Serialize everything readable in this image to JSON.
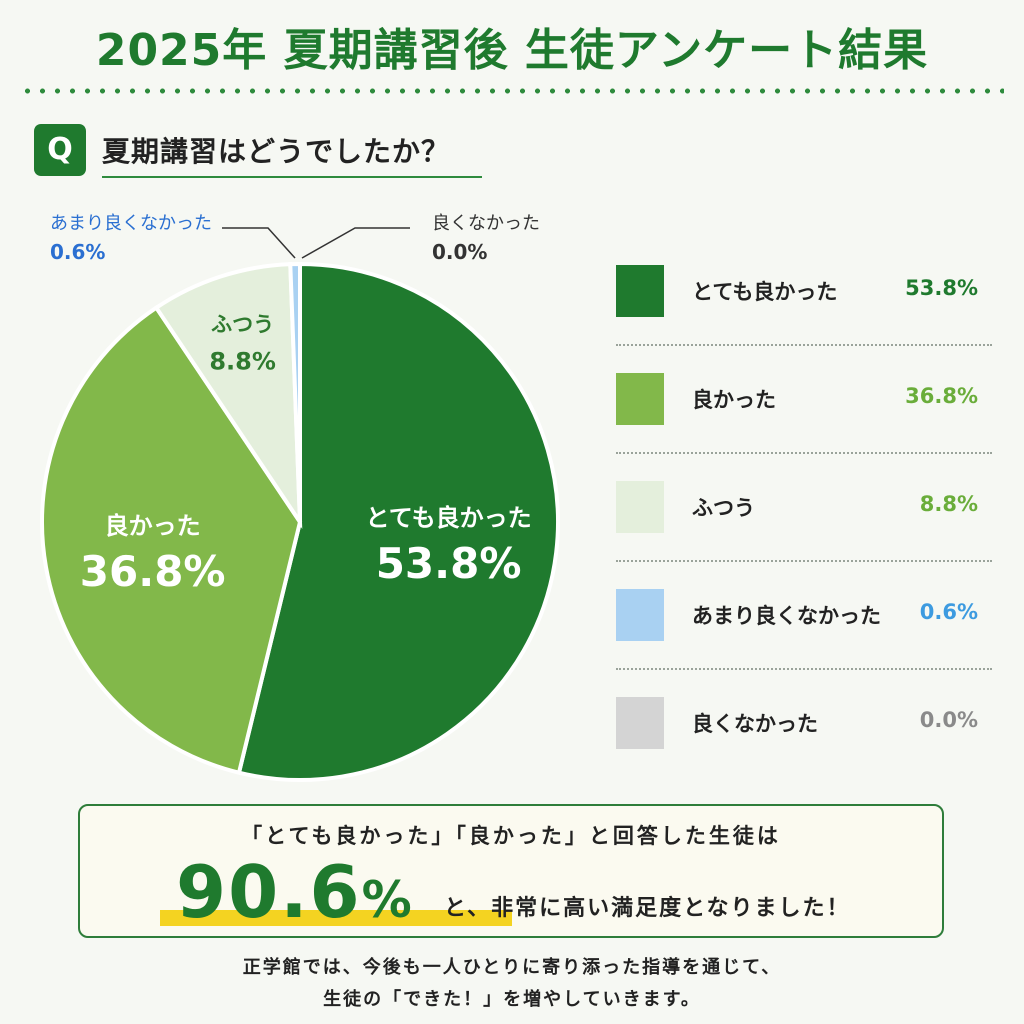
{
  "header": {
    "title": "2025年 夏期講習後 生徒アンケート結果",
    "q_badge": "Q",
    "question": "夏期講習はどうでしたか？"
  },
  "colors": {
    "dark_green": "#1f7a2e",
    "green": "#82b84a",
    "light_green": "#e4efdc",
    "light_blue": "#a9d1f2",
    "gray": "#d4d4d4",
    "highlight_yellow": "#f4d321"
  },
  "chart_data": {
    "type": "pie",
    "title": "夏期講習はどうでしたか？",
    "unit": "%",
    "slices": [
      {
        "label": "とても良かった",
        "value": 53.8,
        "value_text": "53.8%",
        "color": "#1f7a2e",
        "value_color": "#1f7a2e"
      },
      {
        "label": "良かった",
        "value": 36.8,
        "value_text": "36.8%",
        "color": "#82b84a",
        "value_color": "#6aad3a"
      },
      {
        "label": "ふつう",
        "value": 8.8,
        "value_text": "8.8%",
        "color": "#e4efdc",
        "value_color": "#6aad3a"
      },
      {
        "label": "あまり良くなかった",
        "value": 0.6,
        "value_text": "0.6%",
        "color": "#a9d1f2",
        "value_color": "#3d9be0"
      },
      {
        "label": "良くなかった",
        "value": 0.0,
        "value_text": "0.0%",
        "color": "#d4d4d4",
        "value_color": "#8a8a8a"
      }
    ],
    "legend_position": "right"
  },
  "summary": {
    "line1": "「とても良かった」「良かった」と回答した生徒は",
    "big_value": "90.6",
    "big_unit": "%",
    "line2": "と、非常に高い満足度となりました！"
  },
  "footer": {
    "line1": "正学館では、今後も一人ひとりに寄り添った指導を通じて、",
    "line2": "生徒の「できた！」を増やしていきます。"
  }
}
